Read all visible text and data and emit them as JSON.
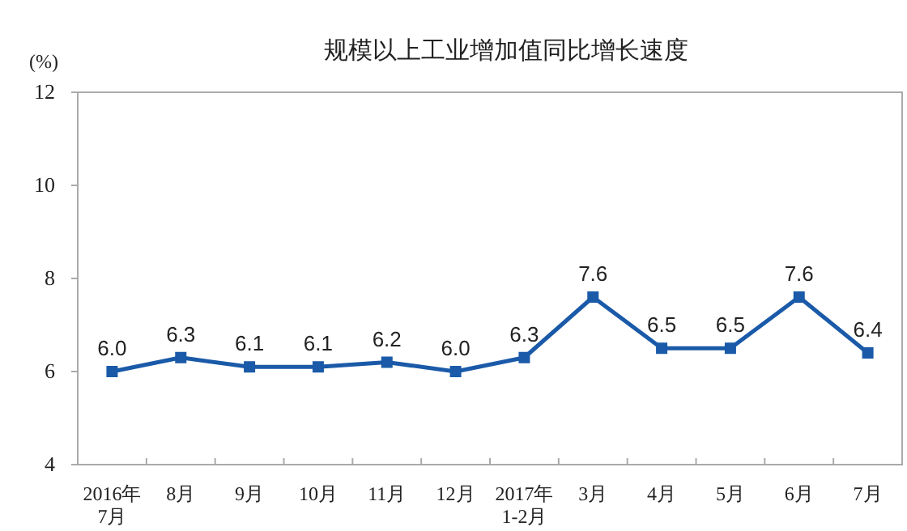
{
  "chart_data": {
    "type": "line",
    "title": "规模以上工业增加值同比增长速度",
    "ylabel": "(%)",
    "categories": [
      "2016年\n7月",
      "8月",
      "9月",
      "10月",
      "11月",
      "12月",
      "2017年\n1-2月",
      "3月",
      "4月",
      "5月",
      "6月",
      "7月"
    ],
    "series": [
      {
        "color": "#1a5aa8",
        "values": [
          6.0,
          6.3,
          6.1,
          6.1,
          6.2,
          6.0,
          6.3,
          7.6,
          6.5,
          6.5,
          7.6,
          6.4
        ]
      }
    ],
    "value_labels": [
      "6.0",
      "6.3",
      "6.1",
      "6.1",
      "6.2",
      "6.0",
      "6.3",
      "7.6",
      "6.5",
      "6.5",
      "7.6",
      "6.4"
    ],
    "ylim": [
      4,
      12
    ],
    "yticks": [
      4,
      6,
      8,
      10,
      12
    ],
    "marker": "square",
    "line_style": "solid",
    "grid": false
  }
}
